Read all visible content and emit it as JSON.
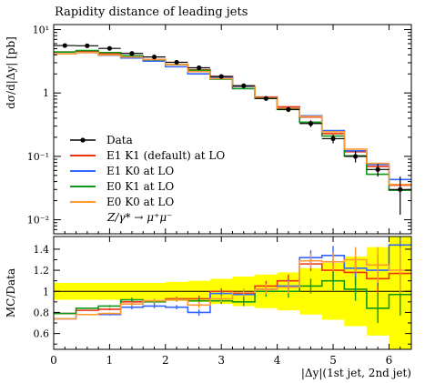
{
  "chart_data": {
    "type": "line",
    "title": "Rapidity distance of leading jets",
    "xlabel": "|Δy|(1st jet, 2nd jet)",
    "ylabel": "dσ/d|Δy| [pb]",
    "ratio_ylabel": "MC/Data",
    "process_label": "Z/γ* → μ⁺μ⁻",
    "xlim": [
      0,
      6.4
    ],
    "ylim_log": [
      0.006,
      12
    ],
    "ratio_ylim": [
      0.45,
      1.52
    ],
    "x_ticks": [
      0,
      1,
      2,
      3,
      4,
      5,
      6
    ],
    "x_tick_labels": [
      "0",
      "1",
      "2",
      "3",
      "4",
      "5",
      "6"
    ],
    "y_ticks": [
      0.01,
      0.1,
      1,
      10
    ],
    "y_tick_labels": [
      "10⁻²",
      "10⁻¹",
      "1",
      "10¹"
    ],
    "ratio_ticks": [
      0.6,
      0.8,
      1.0,
      1.2,
      1.4
    ],
    "ratio_tick_labels": [
      "0.6",
      "0.8",
      "1",
      "1.2",
      "1.4"
    ],
    "legend_position": "lower-left",
    "bin_edges": [
      0,
      0.4,
      0.8,
      1.2,
      1.6,
      2.0,
      2.4,
      2.8,
      3.2,
      3.6,
      4.0,
      4.4,
      4.8,
      5.2,
      5.6,
      6.0,
      6.4
    ],
    "data": {
      "name": "Data",
      "color": "#000000",
      "values": [
        5.6,
        5.55,
        5.05,
        4.2,
        3.7,
        3.05,
        2.5,
        1.82,
        1.3,
        0.82,
        0.55,
        0.33,
        0.19,
        0.1,
        0.062,
        0.03
      ],
      "errors": [
        0.3,
        0.3,
        0.3,
        0.25,
        0.2,
        0.18,
        0.15,
        0.12,
        0.09,
        0.07,
        0.05,
        0.04,
        0.03,
        0.02,
        0.014,
        0.018
      ],
      "band": [
        0.08,
        0.08,
        0.08,
        0.08,
        0.08,
        0.09,
        0.1,
        0.12,
        0.14,
        0.16,
        0.18,
        0.22,
        0.27,
        0.33,
        0.42,
        0.55
      ]
    },
    "series": [
      {
        "name": "E1 K1 (default) at LO",
        "color": "#ee3311",
        "ratio": [
          0.79,
          0.82,
          0.83,
          0.9,
          0.91,
          0.93,
          0.93,
          1.0,
          0.98,
          1.05,
          1.1,
          1.26,
          1.2,
          1.18,
          1.12,
          1.17
        ],
        "ratio_err": [
          0.0,
          0.0,
          0.01,
          0.02,
          0.02,
          0.02,
          0.03,
          0.03,
          0.04,
          0.05,
          0.06,
          0.07,
          0.09,
          0.12,
          0.16,
          0.22
        ]
      },
      {
        "name": "E1 K0 at LO",
        "color": "#3366ff",
        "ratio": [
          0.74,
          0.78,
          0.78,
          0.85,
          0.86,
          0.85,
          0.8,
          0.98,
          0.97,
          1.02,
          1.05,
          1.32,
          1.34,
          1.22,
          1.2,
          1.44
        ],
        "ratio_err": [
          0.0,
          0.0,
          0.01,
          0.02,
          0.02,
          0.02,
          0.03,
          0.03,
          0.04,
          0.05,
          0.06,
          0.07,
          0.09,
          0.11,
          0.15,
          0.2
        ]
      },
      {
        "name": "E0 K1 at LO",
        "color": "#109618",
        "ratio": [
          0.79,
          0.84,
          0.86,
          0.92,
          0.9,
          0.92,
          0.91,
          0.91,
          0.9,
          1.0,
          1.0,
          1.05,
          1.1,
          1.02,
          0.84,
          0.97
        ],
        "ratio_err": [
          0.0,
          0.0,
          0.01,
          0.02,
          0.02,
          0.02,
          0.03,
          0.03,
          0.04,
          0.05,
          0.06,
          0.07,
          0.09,
          0.11,
          0.14,
          0.2
        ]
      },
      {
        "name": "E0 K0 at LO",
        "color": "#ff9933",
        "ratio": [
          0.74,
          0.78,
          0.79,
          0.88,
          0.91,
          0.92,
          0.87,
          0.93,
          0.99,
          1.02,
          1.04,
          1.29,
          1.28,
          1.3,
          1.25,
          1.2
        ],
        "ratio_err": [
          0.0,
          0.0,
          0.01,
          0.02,
          0.02,
          0.02,
          0.03,
          0.03,
          0.04,
          0.05,
          0.06,
          0.07,
          0.09,
          0.12,
          0.17,
          0.22
        ]
      }
    ]
  }
}
